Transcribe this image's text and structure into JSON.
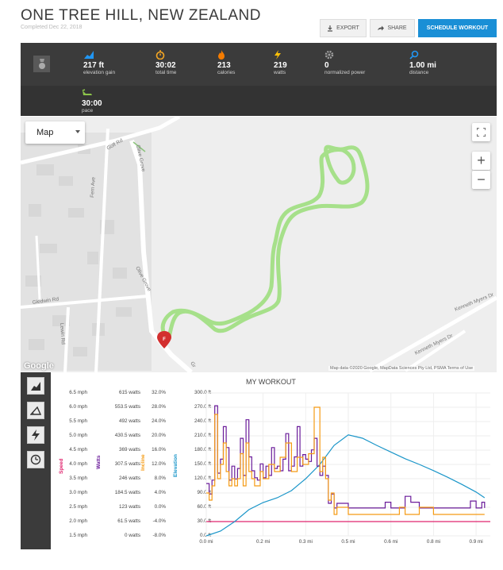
{
  "header": {
    "title": "ONE TREE HILL, NEW ZEALAND",
    "subtitle": "Completed Dec 22, 2018",
    "export_label": "EXPORT",
    "share_label": "SHARE",
    "schedule_label": "SCHEDULE WORKOUT"
  },
  "stats": [
    {
      "icon": "elevation-icon",
      "value": "217 ft",
      "label": "elevation gain"
    },
    {
      "icon": "stopwatch-icon",
      "value": "30:02",
      "label": "total time"
    },
    {
      "icon": "flame-icon",
      "value": "213",
      "label": "calories"
    },
    {
      "icon": "bolt-icon",
      "value": "219",
      "label": "watts"
    },
    {
      "icon": "gear-icon",
      "value": "0",
      "label": "normalized power"
    },
    {
      "icon": "distance-icon",
      "value": "1.00 mi",
      "label": "distance"
    },
    {
      "icon": "shoe-icon",
      "value": "30:00",
      "label": "pace"
    }
  ],
  "map": {
    "type_label": "Map",
    "zoom_in": "+",
    "zoom_out": "−",
    "google": "Google",
    "attribution": "Map data ©2020 Google, MapData Sciences Pty Ltd, PSMA    Terms of Use",
    "marker": "F",
    "streets": [
      "Golf Rd",
      "Olive Grove",
      "Fern Ave",
      "Gledwin Rd",
      "Lewin Rd",
      "Kenneth Myers Dr",
      "Kenneth Myers Dr",
      "Olive Grove",
      "Gr"
    ]
  },
  "sidebar": [
    "chart-elevation-icon",
    "chart-incline-icon",
    "chart-power-icon",
    "chart-speed-icon"
  ],
  "chart_data": {
    "type": "line",
    "title": "MY WORKOUT",
    "xlabel": "",
    "x_ticks": [
      "0.0 mi",
      "0.2 mi",
      "0.3 mi",
      "0.5 mi",
      "0.6 mi",
      "0.8 mi",
      "0.9 mi"
    ],
    "x_tick_values": [
      0,
      0.2,
      0.35,
      0.5,
      0.65,
      0.8,
      0.95
    ],
    "xlim": [
      0,
      1
    ],
    "axes": [
      {
        "name": "Speed",
        "color": "#e0266f",
        "ticks": [
          "6.5 mph",
          "6.0 mph",
          "5.5 mph",
          "5.0 mph",
          "4.5 mph",
          "4.0 mph",
          "3.5 mph",
          "3.0 mph",
          "2.5 mph",
          "2.0 mph",
          "1.5 mph"
        ],
        "ylim": [
          1.5,
          6.5
        ]
      },
      {
        "name": "Watts",
        "color": "#6a1b9a",
        "ticks": [
          "615 watts",
          "553.5 watts",
          "492 watts",
          "430.5 watts",
          "369 watts",
          "307.5 watts",
          "246 watts",
          "184.5 watts",
          "123 watts",
          "61.5 watts",
          "0 watts"
        ],
        "ylim": [
          0,
          615
        ]
      },
      {
        "name": "Incline",
        "color": "#f59b14",
        "ticks": [
          "32.0%",
          "28.0%",
          "24.0%",
          "20.0%",
          "16.0%",
          "12.0%",
          "8.0%",
          "4.0%",
          "0.0%",
          "-4.0%",
          "-8.0%"
        ],
        "ylim": [
          -8,
          32
        ]
      },
      {
        "name": "Elevation",
        "color": "#1b96c9",
        "ticks": [
          "300.0 ft",
          "270.0 ft",
          "240.0 ft",
          "210.0 ft",
          "180.0 ft",
          "150.0 ft",
          "120.0 ft",
          "90.0 ft",
          "60.0 ft",
          "30.0 ft",
          "0.0 ft"
        ],
        "ylim": [
          0,
          300
        ]
      }
    ],
    "series": [
      {
        "name": "Speed",
        "color": "#e0266f",
        "x": [
          0,
          1
        ],
        "values": [
          2.0,
          2.0
        ]
      },
      {
        "name": "Elevation",
        "color": "#1b96c9",
        "x": [
          0,
          0.05,
          0.1,
          0.15,
          0.2,
          0.25,
          0.3,
          0.35,
          0.4,
          0.45,
          0.5,
          0.55,
          0.6,
          0.65,
          0.7,
          0.75,
          0.8,
          0.85,
          0.9,
          0.95,
          0.98
        ],
        "values": [
          0,
          10,
          30,
          55,
          70,
          80,
          95,
          120,
          150,
          190,
          212,
          205,
          190,
          176,
          162,
          150,
          137,
          123,
          108,
          92,
          80
        ]
      },
      {
        "name": "Watts",
        "color": "#6a1b9a",
        "x": [
          0,
          0.01,
          0.02,
          0.03,
          0.04,
          0.05,
          0.06,
          0.07,
          0.08,
          0.09,
          0.1,
          0.11,
          0.12,
          0.13,
          0.14,
          0.15,
          0.16,
          0.17,
          0.18,
          0.19,
          0.2,
          0.21,
          0.22,
          0.23,
          0.24,
          0.25,
          0.26,
          0.27,
          0.28,
          0.29,
          0.3,
          0.31,
          0.32,
          0.33,
          0.34,
          0.35,
          0.36,
          0.37,
          0.38,
          0.39,
          0.4,
          0.41,
          0.42,
          0.43,
          0.44,
          0.45,
          0.46,
          0.5,
          0.55,
          0.6,
          0.63,
          0.65,
          0.7,
          0.72,
          0.75,
          0.8,
          0.85,
          0.9,
          0.93,
          0.95,
          0.97,
          0.98
        ],
        "values": [
          225,
          180,
          240,
          560,
          270,
          330,
          470,
          380,
          240,
          300,
          245,
          290,
          420,
          260,
          500,
          340,
          280,
          250,
          240,
          310,
          250,
          300,
          260,
          380,
          290,
          300,
          280,
          330,
          440,
          280,
          300,
          340,
          470,
          300,
          350,
          330,
          320,
          370,
          420,
          300,
          260,
          300,
          260,
          140,
          180,
          120,
          140,
          120,
          120,
          120,
          145,
          120,
          170,
          145,
          120,
          120,
          120,
          120,
          150,
          120,
          145,
          120
        ]
      },
      {
        "name": "Incline",
        "color": "#f59b14",
        "x": [
          0,
          0.01,
          0.02,
          0.03,
          0.04,
          0.05,
          0.06,
          0.07,
          0.08,
          0.09,
          0.1,
          0.11,
          0.12,
          0.13,
          0.14,
          0.15,
          0.16,
          0.17,
          0.18,
          0.19,
          0.2,
          0.22,
          0.24,
          0.26,
          0.28,
          0.3,
          0.32,
          0.34,
          0.36,
          0.38,
          0.4,
          0.41,
          0.42,
          0.43,
          0.44,
          0.45,
          0.46,
          0.5,
          0.55,
          0.6,
          0.65,
          0.68,
          0.7,
          0.75,
          0.8,
          0.85,
          0.9,
          0.95,
          0.98
        ],
        "values": [
          4,
          2,
          6,
          26,
          8,
          12,
          18,
          10,
          6,
          8,
          6,
          8,
          15,
          6,
          18,
          10,
          8,
          6,
          6,
          10,
          8,
          12,
          10,
          14,
          18,
          10,
          14,
          12,
          15,
          28,
          10,
          14,
          8,
          2,
          4,
          -2,
          0,
          -2,
          -2,
          -2,
          -2,
          0,
          -2,
          0,
          -2,
          -2,
          -2,
          -2,
          -2
        ]
      }
    ]
  }
}
